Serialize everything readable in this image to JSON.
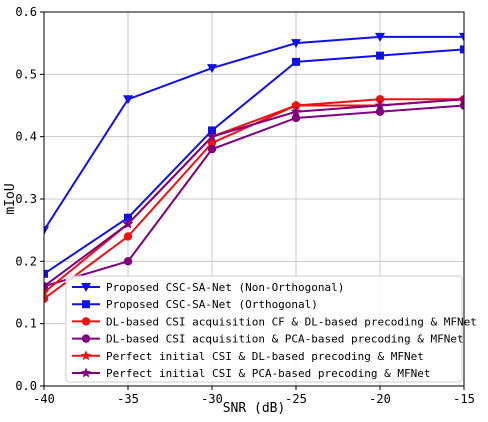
{
  "chart_data": {
    "type": "line",
    "xlabel": "SNR (dB)",
    "ylabel": "mIoU",
    "xlim": [
      -40,
      -15
    ],
    "ylim": [
      0.0,
      0.6
    ],
    "x_ticks": [
      "-40",
      "-35",
      "-30",
      "-25",
      "-20",
      "-15"
    ],
    "y_ticks": [
      "0.0",
      "0.1",
      "0.2",
      "0.3",
      "0.4",
      "0.5",
      "0.6"
    ],
    "x": [
      -40,
      -35,
      -30,
      -25,
      -20,
      -15
    ],
    "grid": true,
    "legend_position": "lower-right",
    "series": [
      {
        "name": "Proposed CSC-SA-Net (Non-Orthogonal)",
        "color": "#1010e8",
        "marker": "triangle-down",
        "values": [
          0.25,
          0.46,
          0.51,
          0.55,
          0.56,
          0.56
        ]
      },
      {
        "name": "Proposed CSC-SA-Net (Orthogonal)",
        "color": "#1010e8",
        "marker": "square",
        "values": [
          0.18,
          0.27,
          0.41,
          0.52,
          0.53,
          0.54
        ]
      },
      {
        "name": "DL-based CSI acquisition CF & DL-based precoding & MFNet",
        "color": "#ee1111",
        "marker": "circle",
        "values": [
          0.14,
          0.24,
          0.39,
          0.45,
          0.46,
          0.46
        ]
      },
      {
        "name": "DL-based CSI acquisition & PCA-based precoding & MFNet",
        "color": "#800080",
        "marker": "circle",
        "values": [
          0.16,
          0.2,
          0.38,
          0.43,
          0.44,
          0.45
        ]
      },
      {
        "name": "Perfect initial CSI & DL-based precoding & MFNet",
        "color": "#ee1111",
        "marker": "star",
        "values": [
          0.15,
          0.26,
          0.4,
          0.45,
          0.45,
          0.46
        ]
      },
      {
        "name": "Perfect initial CSI & PCA-based precoding & MFNet",
        "color": "#800080",
        "marker": "star",
        "values": [
          0.16,
          0.26,
          0.4,
          0.44,
          0.45,
          0.46
        ]
      }
    ]
  }
}
